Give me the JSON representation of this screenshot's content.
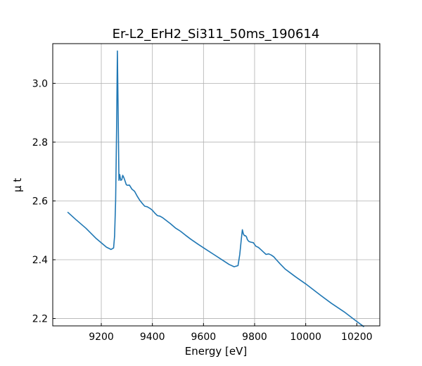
{
  "chart_data": {
    "type": "line",
    "title": "Er-L2_ErH2_Si311_50ms_190614",
    "xlabel": "Energy [eV]",
    "ylabel": "μ t",
    "xlim": [
      9010,
      10290
    ],
    "ylim": [
      2.175,
      3.135
    ],
    "xticks": [
      9200,
      9400,
      9600,
      9800,
      10000,
      10200
    ],
    "xtick_labels": [
      "9200",
      "9400",
      "9600",
      "9800",
      "10000",
      "10200"
    ],
    "yticks": [
      2.2,
      2.4,
      2.6,
      2.8,
      3.0
    ],
    "ytick_labels": [
      "2.2",
      "2.4",
      "2.6",
      "2.8",
      "3.0"
    ],
    "grid": true,
    "series": [
      {
        "color": "#1f77b4",
        "x": [
          9068,
          9100,
          9140,
          9180,
          9220,
          9238,
          9248,
          9252,
          9256,
          9260,
          9263,
          9266,
          9269,
          9272,
          9276,
          9280,
          9284,
          9288,
          9293,
          9298,
          9303,
          9310,
          9320,
          9330,
          9340,
          9350,
          9360,
          9370,
          9380,
          9390,
          9400,
          9410,
          9420,
          9430,
          9440,
          9455,
          9470,
          9490,
          9510,
          9530,
          9550,
          9580,
          9610,
          9640,
          9670,
          9700,
          9720,
          9735,
          9742,
          9748,
          9752,
          9756,
          9760,
          9764,
          9768,
          9772,
          9778,
          9785,
          9795,
          9805,
          9815,
          9825,
          9835,
          9845,
          9855,
          9865,
          9875,
          9885,
          9900,
          9920,
          9940,
          9960,
          9980,
          10000,
          10030,
          10060,
          10100,
          10150,
          10200,
          10228
        ],
        "y": [
          2.562,
          2.537,
          2.507,
          2.472,
          2.443,
          2.435,
          2.44,
          2.48,
          2.6,
          2.85,
          3.11,
          2.9,
          2.67,
          2.69,
          2.67,
          2.672,
          2.687,
          2.68,
          2.668,
          2.655,
          2.653,
          2.654,
          2.64,
          2.633,
          2.617,
          2.603,
          2.592,
          2.582,
          2.58,
          2.575,
          2.568,
          2.558,
          2.55,
          2.548,
          2.543,
          2.533,
          2.523,
          2.508,
          2.497,
          2.483,
          2.47,
          2.452,
          2.435,
          2.418,
          2.401,
          2.384,
          2.376,
          2.38,
          2.418,
          2.47,
          2.502,
          2.488,
          2.482,
          2.482,
          2.478,
          2.468,
          2.462,
          2.46,
          2.458,
          2.446,
          2.442,
          2.434,
          2.426,
          2.418,
          2.42,
          2.416,
          2.41,
          2.4,
          2.386,
          2.368,
          2.355,
          2.342,
          2.33,
          2.318,
          2.298,
          2.278,
          2.252,
          2.223,
          2.19,
          2.172
        ]
      }
    ]
  }
}
